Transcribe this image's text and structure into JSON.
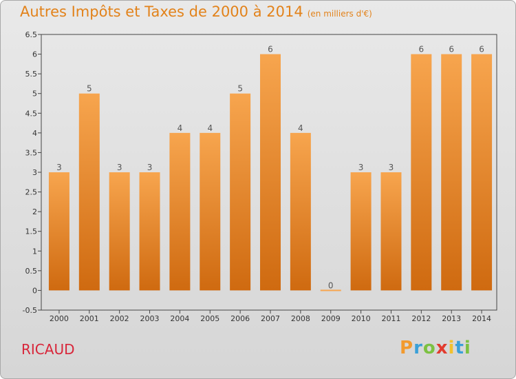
{
  "title": "Autres Impôts et Taxes de 2000 à 2014",
  "subtitle": "(en milliers d'€)",
  "commune": "RICAUD",
  "logo": {
    "text": "Proxiti",
    "colors": [
      "#f29a2e",
      "#3aa0d8",
      "#7cc142",
      "#e23b2e",
      "#f2c12e",
      "#3aa0d8",
      "#7cc142"
    ]
  },
  "colors": {
    "bar_top": "#f7a54e",
    "bar_bottom": "#cf6a10",
    "title": "#e2821a",
    "commune": "#d8263a"
  },
  "chart_data": {
    "type": "bar",
    "title": "Autres Impôts et Taxes de 2000 à 2014",
    "subtitle": "(en milliers d'€)",
    "categories": [
      "2000",
      "2001",
      "2002",
      "2003",
      "2004",
      "2005",
      "2006",
      "2007",
      "2008",
      "2009",
      "2010",
      "2011",
      "2012",
      "2013",
      "2014"
    ],
    "values": [
      3,
      5,
      3,
      3,
      4,
      4,
      5,
      6,
      4,
      0,
      3,
      3,
      6,
      6,
      6
    ],
    "data_labels": [
      "3",
      "5",
      "3",
      "3",
      "4",
      "4",
      "5",
      "6",
      "4",
      "0",
      "3",
      "3",
      "6",
      "6",
      "6"
    ],
    "ylim": [
      -0.5,
      6.5
    ],
    "yticks": [
      "-0.5",
      "0",
      "0.5",
      "1",
      "1.5",
      "2",
      "2.5",
      "3",
      "3.5",
      "4",
      "4.5",
      "5",
      "5.5",
      "6",
      "6.5"
    ],
    "ytick_values": [
      -0.5,
      0,
      0.5,
      1,
      1.5,
      2,
      2.5,
      3,
      3.5,
      4,
      4.5,
      5,
      5.5,
      6,
      6.5
    ],
    "xlabel": "",
    "ylabel": "",
    "grid": false,
    "legend": "none"
  }
}
